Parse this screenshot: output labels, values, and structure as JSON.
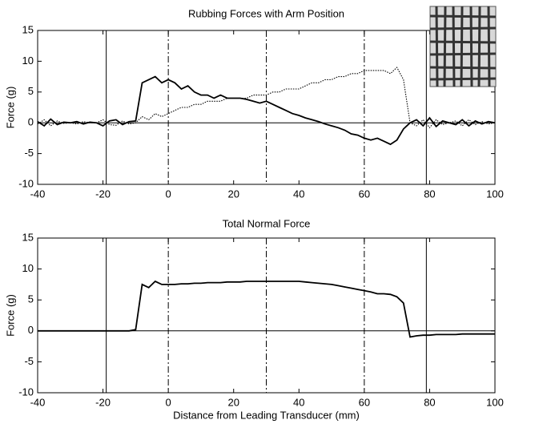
{
  "chart_data": [
    {
      "type": "line",
      "title": "Rubbing Forces with Arm Position",
      "ylabel": "Force (g)",
      "x": [
        -40,
        -38,
        -36,
        -34,
        -32,
        -30,
        -28,
        -26,
        -24,
        -22,
        -20,
        -18,
        -16,
        -14,
        -12,
        -10,
        -8,
        -6,
        -4,
        -2,
        0,
        2,
        4,
        6,
        8,
        10,
        12,
        14,
        16,
        18,
        20,
        22,
        24,
        26,
        28,
        30,
        32,
        34,
        36,
        38,
        40,
        42,
        44,
        46,
        48,
        50,
        52,
        54,
        56,
        58,
        60,
        62,
        64,
        66,
        68,
        70,
        72,
        74,
        76,
        78,
        80,
        82,
        84,
        86,
        88,
        90,
        92,
        94,
        96,
        98,
        100
      ],
      "series": [
        {
          "color": "#000000",
          "style": "solid",
          "values": [
            0.2,
            -0.5,
            0.6,
            -0.3,
            0.1,
            0,
            0.2,
            -0.2,
            0.1,
            0,
            -0.5,
            0.3,
            0.5,
            -0.3,
            0.2,
            0.3,
            6.5,
            7,
            7.5,
            6.5,
            7,
            6.5,
            5.5,
            6,
            5,
            4.5,
            4.5,
            4,
            4.5,
            4,
            4,
            4,
            3.8,
            3.5,
            3.2,
            3.5,
            3,
            2.5,
            2,
            1.5,
            1.2,
            0.8,
            0.5,
            0.2,
            -0.2,
            -0.5,
            -0.8,
            -1.2,
            -1.8,
            -2,
            -2.5,
            -2.8,
            -2.5,
            -3,
            -3.5,
            -2.8,
            -1,
            0,
            0.5,
            -0.5,
            0.8,
            -0.6,
            0.3,
            0,
            -0.3,
            0.5,
            -0.5,
            0.3,
            -0.2,
            0.2,
            0
          ]
        },
        {
          "color": "#000000",
          "style": "dotted",
          "values": [
            -0.2,
            0.5,
            -0.5,
            0.3,
            -0.1,
            0,
            -0.2,
            0.2,
            0,
            0,
            0.5,
            -0.3,
            -0.4,
            0.3,
            -0.2,
            0,
            1,
            0.5,
            1.5,
            1,
            1.5,
            2,
            2.5,
            2.5,
            3,
            3,
            3.5,
            3.5,
            3.5,
            4,
            4,
            4,
            4,
            4.5,
            4.5,
            4.5,
            5,
            5,
            5.5,
            5.5,
            5.5,
            6,
            6.5,
            6.5,
            7,
            7,
            7.5,
            7.5,
            8,
            8,
            8.5,
            8.5,
            8.5,
            8.5,
            8,
            9,
            7,
            0,
            -0.5,
            0.5,
            -0.8,
            0.5,
            -0.3,
            0,
            0.3,
            -0.5,
            0.5,
            -0.3,
            0.2,
            -0.2,
            0
          ]
        }
      ],
      "xlim": [
        -40,
        100
      ],
      "xticks": [
        -40,
        -20,
        0,
        20,
        40,
        60,
        80,
        100
      ],
      "ylim": [
        -10,
        15
      ],
      "yticks": [
        -10,
        -5,
        0,
        5,
        10,
        15
      ],
      "hlines": [
        0
      ],
      "vlines": [
        {
          "x": -19,
          "style": "solid"
        },
        {
          "x": 0,
          "style": "dashdot"
        },
        {
          "x": 30,
          "style": "dashdot"
        },
        {
          "x": 60,
          "style": "dashdot"
        },
        {
          "x": 79,
          "style": "solid"
        }
      ]
    },
    {
      "type": "line",
      "title": "Total Normal Force",
      "ylabel": "Force (g)",
      "xlabel": "Distance from Leading Transducer (mm)",
      "x": [
        -40,
        -38,
        -36,
        -34,
        -32,
        -30,
        -28,
        -26,
        -24,
        -22,
        -20,
        -18,
        -16,
        -14,
        -12,
        -10,
        -8,
        -6,
        -4,
        -2,
        0,
        2,
        4,
        6,
        8,
        10,
        12,
        14,
        16,
        18,
        20,
        22,
        24,
        26,
        28,
        30,
        32,
        34,
        36,
        38,
        40,
        42,
        44,
        46,
        48,
        50,
        52,
        54,
        56,
        58,
        60,
        62,
        64,
        66,
        68,
        70,
        72,
        74,
        76,
        78,
        80,
        82,
        84,
        86,
        88,
        90,
        92,
        94,
        96,
        98,
        100
      ],
      "series": [
        {
          "color": "#000000",
          "style": "solid",
          "values": [
            0,
            0,
            0,
            0,
            0,
            0,
            0,
            0,
            0,
            0,
            0,
            0,
            0,
            0,
            0,
            0.2,
            7.5,
            7,
            8,
            7.5,
            7.5,
            7.5,
            7.6,
            7.6,
            7.7,
            7.7,
            7.8,
            7.8,
            7.8,
            7.9,
            7.9,
            7.9,
            8,
            8,
            8,
            8,
            8,
            8,
            8,
            8,
            8,
            7.9,
            7.8,
            7.7,
            7.6,
            7.5,
            7.3,
            7.1,
            6.9,
            6.7,
            6.5,
            6.3,
            6,
            6,
            5.9,
            5.5,
            4.5,
            -1,
            -0.8,
            -0.7,
            -0.7,
            -0.6,
            -0.6,
            -0.6,
            -0.6,
            -0.5,
            -0.5,
            -0.5,
            -0.5,
            -0.5,
            -0.5
          ]
        }
      ],
      "xlim": [
        -40,
        100
      ],
      "xticks": [
        -40,
        -20,
        0,
        20,
        40,
        60,
        80,
        100
      ],
      "ylim": [
        -10,
        15
      ],
      "yticks": [
        -10,
        -5,
        0,
        5,
        10,
        15
      ],
      "hlines": [
        0
      ],
      "vlines": [
        {
          "x": -19,
          "style": "solid"
        },
        {
          "x": 0,
          "style": "dashdot"
        },
        {
          "x": 30,
          "style": "dashdot"
        },
        {
          "x": 60,
          "style": "dashdot"
        },
        {
          "x": 79,
          "style": "solid"
        }
      ]
    }
  ]
}
